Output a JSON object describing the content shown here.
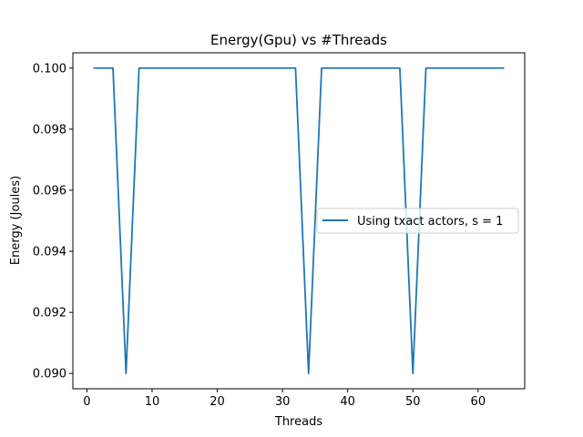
{
  "chart_data": {
    "type": "line",
    "title": "Energy(Gpu) vs #Threads",
    "xlabel": "Threads",
    "ylabel": "Energy (Joules)",
    "xlim": [
      -2.15,
      67.15
    ],
    "ylim": [
      0.0895,
      0.1005
    ],
    "xticks": [
      0,
      10,
      20,
      30,
      40,
      50,
      60
    ],
    "xtick_labels": [
      "0",
      "10",
      "20",
      "30",
      "40",
      "50",
      "60"
    ],
    "yticks": [
      0.09,
      0.092,
      0.094,
      0.096,
      0.098,
      0.1
    ],
    "ytick_labels": [
      "0.090",
      "0.092",
      "0.094",
      "0.096",
      "0.098",
      "0.100"
    ],
    "grid": false,
    "legend_position": "center-right",
    "series": [
      {
        "name": "Using txact actors, s = 1",
        "color": "#1f77b4",
        "x": [
          1,
          4,
          6,
          8,
          32,
          34,
          36,
          48,
          50,
          52,
          64
        ],
        "y": [
          0.1,
          0.1,
          0.09,
          0.1,
          0.1,
          0.09,
          0.1,
          0.1,
          0.09,
          0.1,
          0.1
        ]
      }
    ]
  }
}
